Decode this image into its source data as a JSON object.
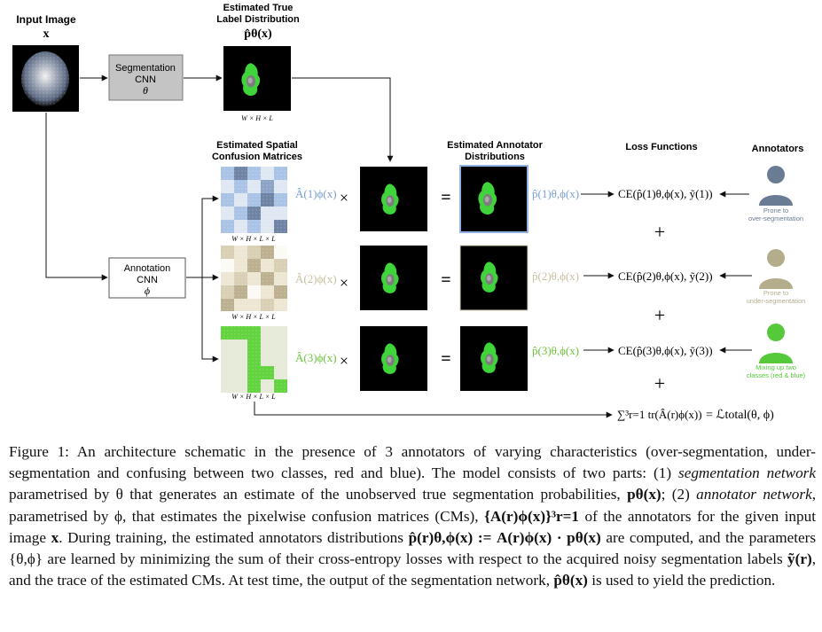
{
  "figure": {
    "input_title": "Input Image",
    "input_symbol": "x",
    "seg_cnn": {
      "line1": "Segmentation",
      "line2": "CNN",
      "line3": "θ"
    },
    "true_label_title_1": "Estimated True",
    "true_label_title_2": "Label Distribution",
    "true_label_symbol": "p̂θ(x)",
    "dim_whl": "W × H × L",
    "dim_whll": "W × H × L × L",
    "cm_title_1": "Estimated Spatial",
    "cm_title_2": "Confusion Matrices",
    "annot_dist_title_1": "Estimated Annotator",
    "annot_dist_title_2": "Distributions",
    "loss_title": "Loss Functions",
    "annotators_title": "Annotators",
    "ann_cnn": {
      "line1": "Annotation",
      "line2": "CNN",
      "line3": "ϕ"
    },
    "rows": [
      {
        "A": "Â(1)ϕ(x)",
        "p": "p̂(1)θ,ϕ(x)",
        "ce": "CE(p̂(1)θ,ϕ(x), ỹ(1))",
        "annot_label": [
          "Prone to",
          "over-segmentation"
        ]
      },
      {
        "A": "Â(2)ϕ(x)",
        "p": "p̂(2)θ,ϕ(x)",
        "ce": "CE(p̂(2)θ,ϕ(x), ỹ(2))",
        "annot_label": [
          "Prone to",
          "under-segmentation"
        ]
      },
      {
        "A": "Â(3)ϕ(x)",
        "p": "p̂(3)θ,ϕ(x)",
        "ce": "CE(p̂(3)θ,ϕ(x), ỹ(3))",
        "annot_label": [
          "Mixing up two",
          "classes (red & blue)"
        ]
      }
    ],
    "times": "×",
    "equals": "=",
    "plus": "+",
    "trace_term": "∑³r=1 tr(Â(r)ϕ(x))",
    "total_loss": "= ℒtotal(θ, ϕ)",
    "colors": {
      "row1": "#7a9fd1",
      "row2": "#c8bfa0",
      "row3": "#6fc23f",
      "annot1": "#6a7c93",
      "annot2": "#b3ad8c",
      "annot3": "#56c93a"
    }
  },
  "caption": {
    "figure_label": "Figure 1:",
    "p1": "An architecture schematic in the presence of 3 annotators of varying characteristics (over-segmentation, under-segmentation and confusing between two classes, red and blue). The model consists of two parts: (1)",
    "seg_net": "segmentation network",
    "p2": "parametrised by θ that generates an estimate of the unobserved true segmentation probabilities,",
    "p_theta": "pθ(x)",
    "p3": "; (2)",
    "ann_net": "annotator network",
    "p4": ", parametrised by ϕ, that estimates the pixelwise confusion matrices (CMs),",
    "cm_set": "{A(r)ϕ(x)}³r=1",
    "p5": "of the annotators for the given input image",
    "x_bold": "x",
    "p6": ". During training, the estimated annotators distributions",
    "est_def": "p̂(r)θ,ϕ(x) := A(r)ϕ(x) · pθ(x)",
    "p7": "are computed, and the parameters {θ,ϕ} are learned by minimizing the sum of their cross-entropy losses with respect to the acquired noisy segmentation labels",
    "y_tilde": "ỹ(r)",
    "p8": ", and the trace of the estimated CMs. At test time, the output of the segmentation network,",
    "p_hat_theta": "p̂θ(x)",
    "p9": "is used to yield the prediction."
  }
}
